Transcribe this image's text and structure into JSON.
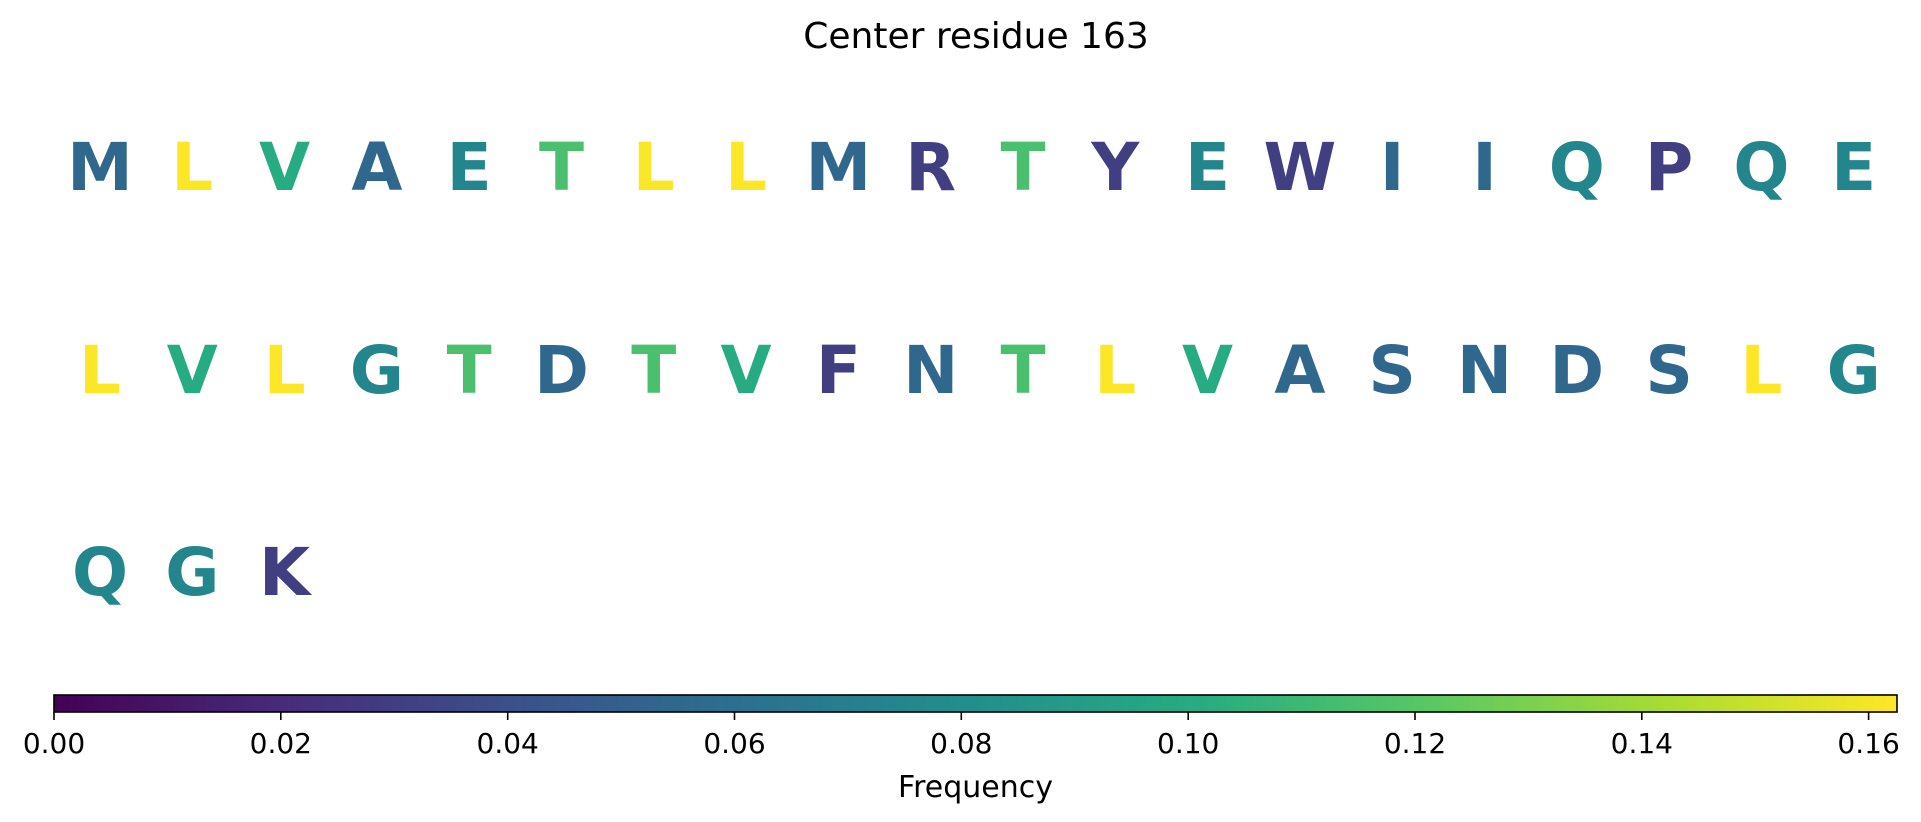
{
  "chart_data": {
    "type": "sequence-logo-heatmap",
    "title": "Center residue 163",
    "residues": [
      {
        "letter": "M",
        "value": 0.055
      },
      {
        "letter": "L",
        "value": 0.162
      },
      {
        "letter": "V",
        "value": 0.1
      },
      {
        "letter": "A",
        "value": 0.055
      },
      {
        "letter": "E",
        "value": 0.075
      },
      {
        "letter": "T",
        "value": 0.115
      },
      {
        "letter": "L",
        "value": 0.162
      },
      {
        "letter": "L",
        "value": 0.162
      },
      {
        "letter": "M",
        "value": 0.055
      },
      {
        "letter": "R",
        "value": 0.03
      },
      {
        "letter": "T",
        "value": 0.115
      },
      {
        "letter": "Y",
        "value": 0.03
      },
      {
        "letter": "E",
        "value": 0.075
      },
      {
        "letter": "W",
        "value": 0.03
      },
      {
        "letter": "I",
        "value": 0.055
      },
      {
        "letter": "I",
        "value": 0.055
      },
      {
        "letter": "Q",
        "value": 0.075
      },
      {
        "letter": "P",
        "value": 0.03
      },
      {
        "letter": "Q",
        "value": 0.075
      },
      {
        "letter": "E",
        "value": 0.075
      },
      {
        "letter": "L",
        "value": 0.162
      },
      {
        "letter": "V",
        "value": 0.1
      },
      {
        "letter": "L",
        "value": 0.162
      },
      {
        "letter": "G",
        "value": 0.075
      },
      {
        "letter": "T",
        "value": 0.115
      },
      {
        "letter": "D",
        "value": 0.055
      },
      {
        "letter": "T",
        "value": 0.115
      },
      {
        "letter": "V",
        "value": 0.1
      },
      {
        "letter": "F",
        "value": 0.03
      },
      {
        "letter": "N",
        "value": 0.055
      },
      {
        "letter": "T",
        "value": 0.115
      },
      {
        "letter": "L",
        "value": 0.162
      },
      {
        "letter": "V",
        "value": 0.1
      },
      {
        "letter": "A",
        "value": 0.055
      },
      {
        "letter": "S",
        "value": 0.055
      },
      {
        "letter": "N",
        "value": 0.055
      },
      {
        "letter": "D",
        "value": 0.055
      },
      {
        "letter": "S",
        "value": 0.055
      },
      {
        "letter": "L",
        "value": 0.162
      },
      {
        "letter": "G",
        "value": 0.075
      },
      {
        "letter": "Q",
        "value": 0.075
      },
      {
        "letter": "G",
        "value": 0.075
      },
      {
        "letter": "K",
        "value": 0.03
      }
    ],
    "letters_per_row": 20,
    "colorbar": {
      "colormap": "viridis",
      "vmin": 0.0,
      "vmax": 0.1625,
      "ticks": [
        0.0,
        0.02,
        0.04,
        0.06,
        0.08,
        0.1,
        0.12,
        0.14,
        0.16
      ],
      "tick_labels": [
        "0.00",
        "0.02",
        "0.04",
        "0.06",
        "0.08",
        "0.10",
        "0.12",
        "0.14",
        "0.16"
      ],
      "label": "Frequency",
      "orientation": "horizontal",
      "location": "bottom"
    }
  }
}
